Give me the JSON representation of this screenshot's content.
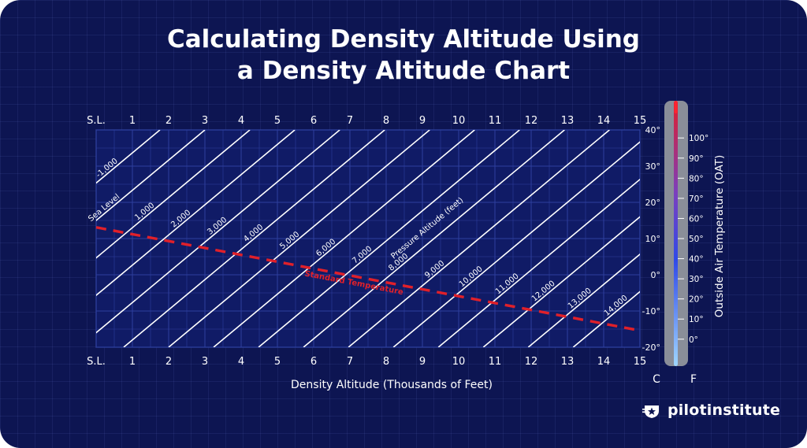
{
  "title_line1": "Calculating Density Altitude Using",
  "title_line2": "a Density Altitude Chart",
  "logo": {
    "text": "pilotinstitute",
    "icon": "star-badge-icon"
  },
  "colors": {
    "background": "#0d1552",
    "grid": "#2e3f9e",
    "line": "#ffffff",
    "standard": "#e0202a",
    "thermo_body": "#8a8e99"
  },
  "chart_data": {
    "type": "line",
    "title": "Calculating Density Altitude Using a Density Altitude Chart",
    "xlabel": "Density Altitude (Thousands of Feet)",
    "ylabel": "Outside Air Temperature (OAT)",
    "x_ticks_top": [
      "S.L.",
      "1",
      "2",
      "3",
      "4",
      "5",
      "6",
      "7",
      "8",
      "9",
      "10",
      "11",
      "12",
      "13",
      "14",
      "15"
    ],
    "x_ticks_bottom": [
      "S.L.",
      "1",
      "2",
      "3",
      "4",
      "5",
      "6",
      "7",
      "8",
      "9",
      "10",
      "11",
      "12",
      "13",
      "14",
      "15"
    ],
    "xlim": [
      0,
      15
    ],
    "ylim_c": [
      -20,
      40
    ],
    "celsius_ticks": [
      40,
      30,
      20,
      10,
      0,
      -10,
      -20
    ],
    "celsius_tick_labels": [
      "40°",
      "30°",
      "20°",
      "10°",
      "0°",
      "-10°",
      "-20°"
    ],
    "fahrenheit_ticks": [
      100,
      90,
      80,
      70,
      60,
      50,
      40,
      30,
      20,
      10,
      0
    ],
    "fahrenheit_tick_labels": [
      "100°",
      "90°",
      "80°",
      "70°",
      "60°",
      "50°",
      "40°",
      "30°",
      "20°",
      "10°",
      "0°"
    ],
    "c_unit": "C",
    "f_unit": "F",
    "grid": true,
    "pressure_altitude_lines": [
      {
        "label": "-1,000",
        "pa": -1000
      },
      {
        "label": "Sea Level",
        "pa": 0
      },
      {
        "label": "1,000",
        "pa": 1000
      },
      {
        "label": "2,000",
        "pa": 2000
      },
      {
        "label": "3,000",
        "pa": 3000
      },
      {
        "label": "4,000",
        "pa": 4000
      },
      {
        "label": "5,000",
        "pa": 5000
      },
      {
        "label": "6,000",
        "pa": 6000
      },
      {
        "label": "7,000",
        "pa": 7000
      },
      {
        "label": "8,000",
        "pa": 8000
      },
      {
        "label": "9,000",
        "pa": 9000
      },
      {
        "label": "10,000",
        "pa": 10000
      },
      {
        "label": "11,000",
        "pa": 11000
      },
      {
        "label": "12,000",
        "pa": 12000
      },
      {
        "label": "13,000",
        "pa": 13000
      },
      {
        "label": "14,000",
        "pa": 14000
      }
    ],
    "pressure_altitude_caption": "Pressure Altitude (feet)",
    "standard_temperature": {
      "label": "Standard Temperature",
      "points": [
        [
          0,
          13.1
        ],
        [
          15,
          -15.4
        ]
      ]
    }
  }
}
